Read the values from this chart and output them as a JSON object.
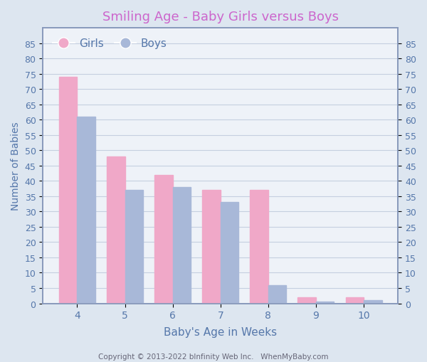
{
  "title": "Smiling Age - Baby Girls versus Boys",
  "xlabel": "Baby's Age in Weeks",
  "ylabel": "Number of Babies",
  "categories": [
    4,
    5,
    6,
    7,
    8,
    9,
    10
  ],
  "girls_values": [
    74,
    48,
    42,
    37,
    37,
    2,
    2
  ],
  "boys_values": [
    61,
    37,
    38,
    33,
    6,
    0.5,
    1
  ],
  "girls_color": "#f0a8c8",
  "boys_color": "#a8b8d8",
  "title_color": "#cc66cc",
  "axis_label_color": "#5577aa",
  "tick_color": "#5577aa",
  "background_color": "#dde6f0",
  "plot_bg_color": "#eef2f8",
  "ylim_left": [
    0,
    90
  ],
  "ylim_right": [
    0,
    90
  ],
  "yticks_left": [
    0,
    5,
    10,
    15,
    20,
    25,
    30,
    35,
    40,
    45,
    50,
    55,
    60,
    65,
    70,
    75,
    80,
    85
  ],
  "yticks_right": [
    0,
    5,
    10,
    15,
    20,
    25,
    30,
    35,
    40,
    45,
    50,
    55,
    60,
    65,
    70,
    75,
    80,
    85
  ],
  "xtick_labels": [
    "4",
    "5",
    "6",
    "7",
    "8",
    "9",
    "10"
  ],
  "copyright_text": "Copyright © 2013-2022 bInfinity Web Inc.   WhenMyBaby.com",
  "legend_girls": "Girls",
  "legend_boys": "Boys",
  "bar_width": 0.38
}
